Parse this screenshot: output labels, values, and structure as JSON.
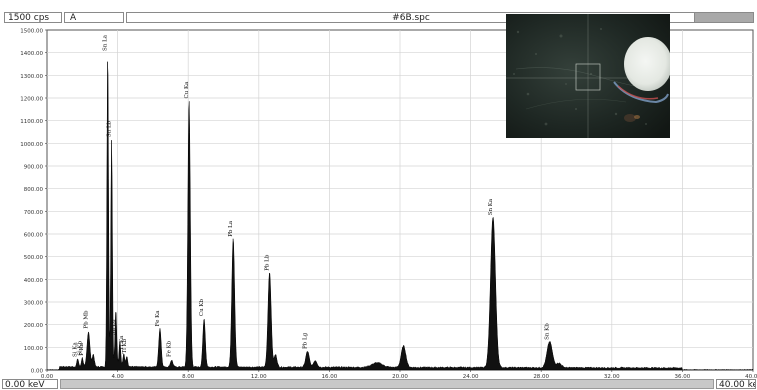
{
  "toolbar": {
    "cps": "1500 cps",
    "mode": "A",
    "filename": "#6B.spc"
  },
  "footer": {
    "x_min_label": "0.00 keV",
    "x_max_label": "40.00 keV"
  },
  "chart_data": {
    "type": "line",
    "xlim": [
      0,
      40
    ],
    "ylim": [
      0,
      1500
    ],
    "x_ticks": [
      0,
      4,
      8,
      12,
      16,
      20,
      24,
      28,
      32,
      36,
      40
    ],
    "x_tick_labels": [
      "0.00",
      "4.00",
      "8.00",
      "12.00",
      "16.00",
      "20.00",
      "24.00",
      "28.00",
      "32.00",
      "36.00",
      "40.00"
    ],
    "y_ticks": [
      0,
      100,
      200,
      300,
      400,
      500,
      600,
      700,
      800,
      900,
      1000,
      1100,
      1200,
      1300,
      1400,
      1500
    ],
    "y_tick_labels": [
      "0.00",
      "100.00",
      "200.00",
      "300.00",
      "400.00",
      "500.00",
      "600.00",
      "700.00",
      "800.00",
      "900.00",
      "1000.00",
      "1100.00",
      "1200.00",
      "1300.00",
      "1400.00",
      "1500.00"
    ],
    "grid": true,
    "baseline": 12,
    "peaks": [
      {
        "x": 1.74,
        "y": 35,
        "w": 0.05
      },
      {
        "x": 2.0,
        "y": 40,
        "w": 0.05
      },
      {
        "x": 2.35,
        "y": 155,
        "w": 0.08
      },
      {
        "x": 2.62,
        "y": 55,
        "w": 0.06
      },
      {
        "x": 3.44,
        "y": 1390,
        "w": 0.045
      },
      {
        "x": 3.66,
        "y": 1000,
        "w": 0.045
      },
      {
        "x": 3.9,
        "y": 250,
        "w": 0.05
      },
      {
        "x": 4.13,
        "y": 110,
        "w": 0.05
      },
      {
        "x": 4.35,
        "y": 60,
        "w": 0.05
      },
      {
        "x": 4.52,
        "y": 45,
        "w": 0.05
      },
      {
        "x": 6.4,
        "y": 170,
        "w": 0.07
      },
      {
        "x": 7.06,
        "y": 30,
        "w": 0.07
      },
      {
        "x": 8.05,
        "y": 1180,
        "w": 0.07
      },
      {
        "x": 8.9,
        "y": 215,
        "w": 0.07
      },
      {
        "x": 10.55,
        "y": 570,
        "w": 0.08
      },
      {
        "x": 12.61,
        "y": 420,
        "w": 0.09
      },
      {
        "x": 12.95,
        "y": 55,
        "w": 0.08
      },
      {
        "x": 14.76,
        "y": 70,
        "w": 0.1
      },
      {
        "x": 15.2,
        "y": 30,
        "w": 0.1
      },
      {
        "x": 18.7,
        "y": 20,
        "w": 0.3
      },
      {
        "x": 20.2,
        "y": 95,
        "w": 0.13
      },
      {
        "x": 25.27,
        "y": 665,
        "w": 0.14
      },
      {
        "x": 28.48,
        "y": 115,
        "w": 0.15
      },
      {
        "x": 29.0,
        "y": 20,
        "w": 0.15
      }
    ],
    "annotations": [
      {
        "text": "Sn La",
        "x": 3.44,
        "y": 1390
      },
      {
        "text": "Sn Lb",
        "x": 3.66,
        "y": 1010
      },
      {
        "text": "Cu Ka",
        "x": 8.05,
        "y": 1180
      },
      {
        "text": "Pb La",
        "x": 10.55,
        "y": 570
      },
      {
        "text": "Pb Lb",
        "x": 12.61,
        "y": 420
      },
      {
        "text": "Sn Ka",
        "x": 25.27,
        "y": 665
      },
      {
        "text": "Sn Kb",
        "x": 28.48,
        "y": 115
      },
      {
        "text": "Fe Ka",
        "x": 6.4,
        "y": 175
      },
      {
        "text": "Cu Kb",
        "x": 8.9,
        "y": 220
      },
      {
        "text": "Pb Mb",
        "x": 2.35,
        "y": 165
      },
      {
        "text": "Sn Lg",
        "x": 3.9,
        "y": 135
      },
      {
        "text": "Fe Kb",
        "x": 7.06,
        "y": 40
      },
      {
        "text": "Pb Lg",
        "x": 14.76,
        "y": 75
      },
      {
        "text": "Si Ka",
        "x": 1.74,
        "y": 40
      },
      {
        "text": "Si Kb",
        "x": 2.0,
        "y": 45
      },
      {
        "text": "Ti Ka",
        "x": 4.35,
        "y": 70
      },
      {
        "text": "Ti Kb",
        "x": 4.52,
        "y": 55
      },
      {
        "text": "P Ka",
        "x": 2.1,
        "y": 45
      }
    ]
  }
}
